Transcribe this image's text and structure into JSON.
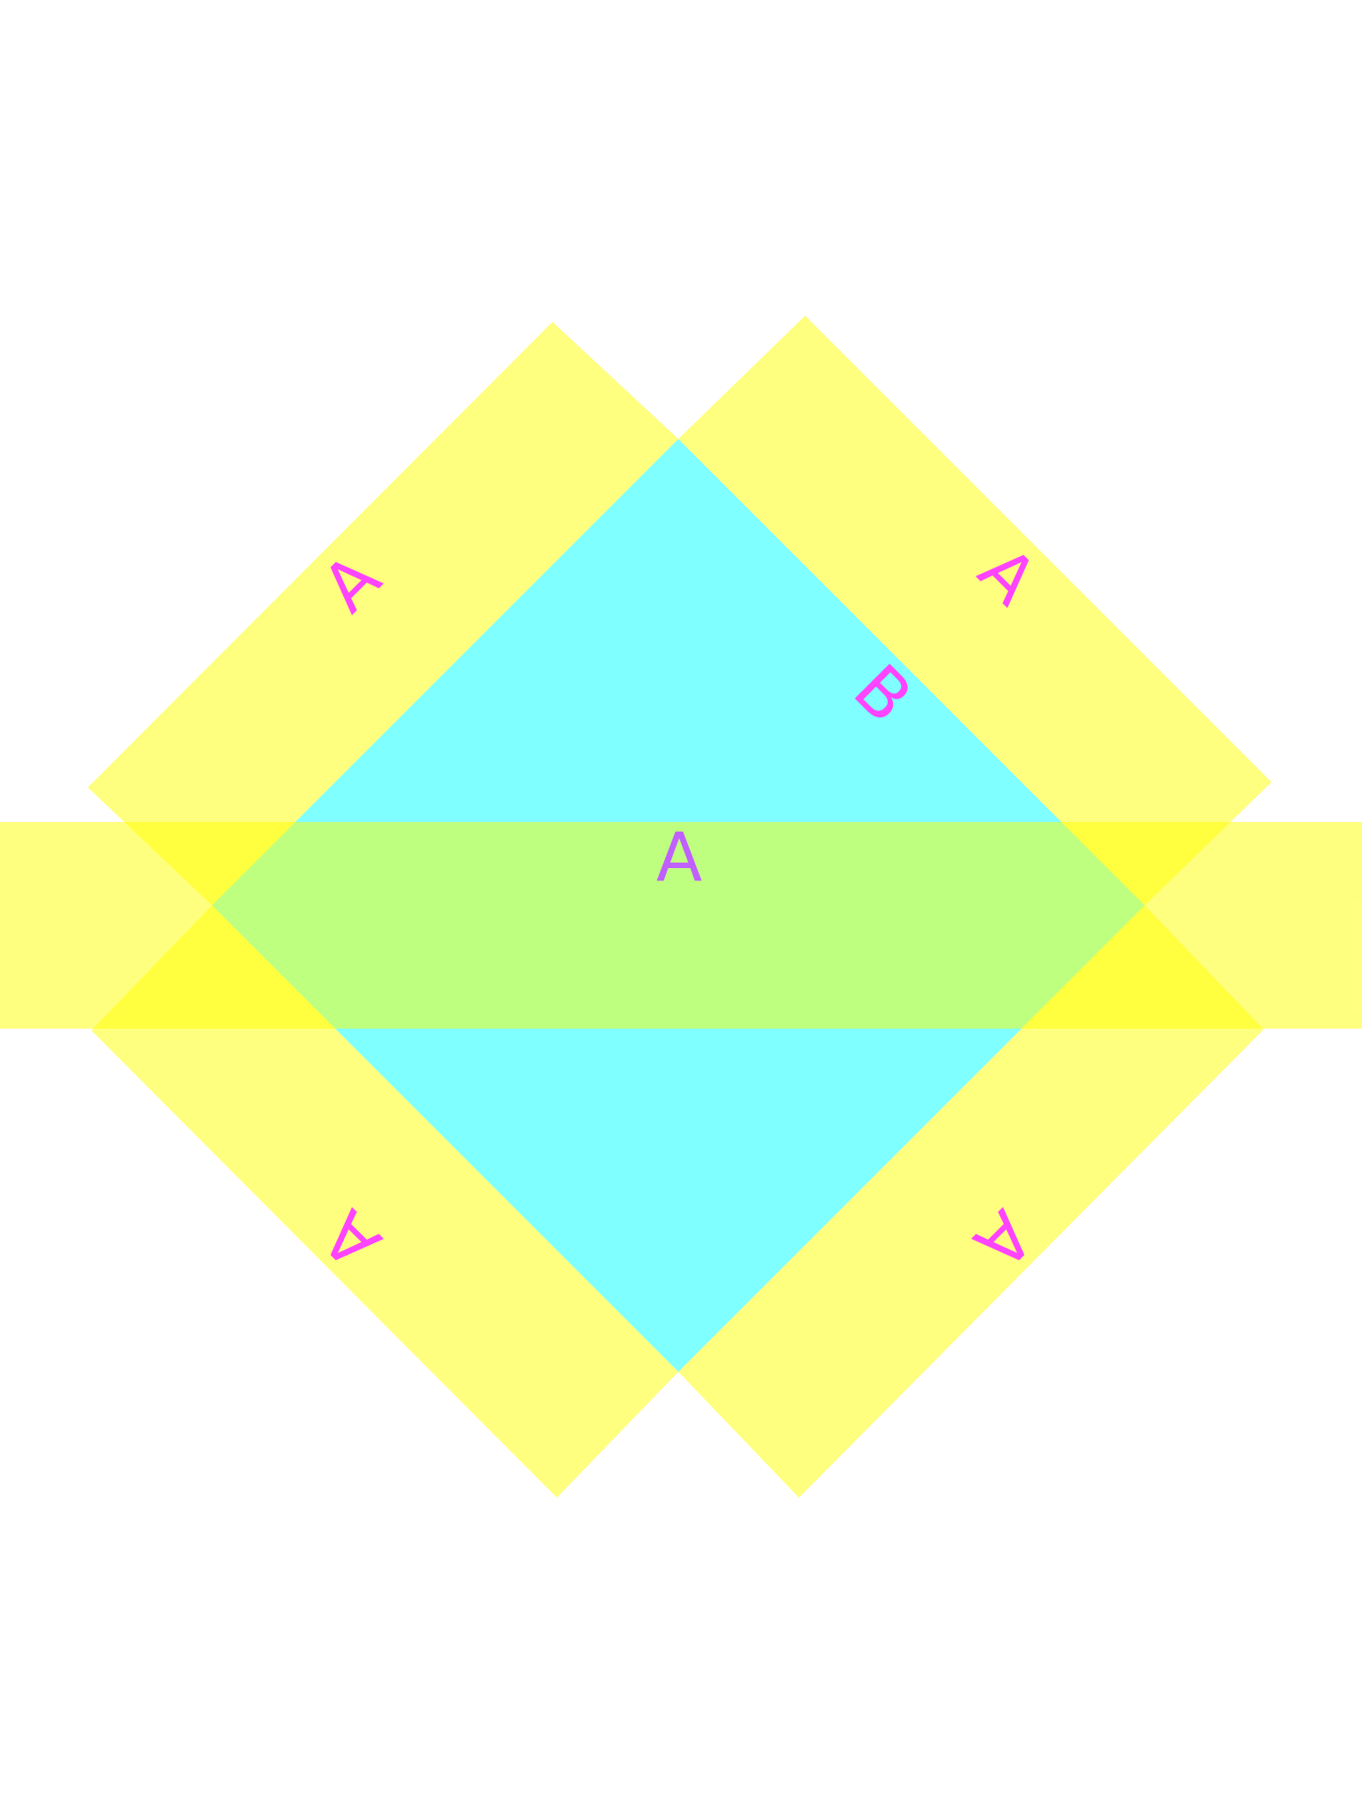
{
  "colors": {
    "background": "#ffffff",
    "strip_fill": "#ffff00",
    "diamond_fill": "#00ffff",
    "label_color": "#ff44ff",
    "center_label_color": "#c060ff"
  },
  "labels": {
    "upper_left_strip": "A",
    "upper_right_strip": "A",
    "lower_left_strip": "A",
    "lower_right_strip": "A",
    "diamond_edge": "B",
    "horizontal_band": "A"
  }
}
